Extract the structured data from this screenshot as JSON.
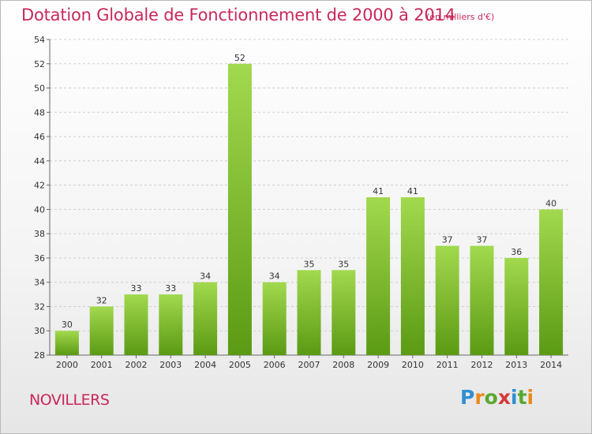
{
  "header": {
    "title": "Dotation Globale de Fonctionnement de 2000 à 2014",
    "unit": "(en milliers d'€)"
  },
  "place": "NOVILLERS",
  "logo": {
    "text": "Proxiti",
    "colors": [
      "#2f8fd0",
      "#e88a1a",
      "#58a830",
      "#d43a3a",
      "#2f8fd0",
      "#58a830",
      "#e88a1a"
    ]
  },
  "chart_data": {
    "type": "bar",
    "categories": [
      "2000",
      "2001",
      "2002",
      "2003",
      "2004",
      "2005",
      "2006",
      "2007",
      "2008",
      "2009",
      "2010",
      "2011",
      "2012",
      "2013",
      "2014"
    ],
    "values": [
      30,
      32,
      33,
      33,
      34,
      52,
      34,
      35,
      35,
      41,
      41,
      37,
      37,
      36,
      40
    ],
    "title": "Dotation Globale de Fonctionnement de 2000 à 2014",
    "subtitle": "(en milliers d'€)",
    "ylim": [
      28,
      54
    ],
    "yticks": [
      28,
      30,
      32,
      34,
      36,
      38,
      40,
      42,
      44,
      46,
      48,
      50,
      52,
      54
    ],
    "grid": true,
    "colors": {
      "bar_light": "#a2d94e",
      "bar_dark": "#5b9a14",
      "grid": "#cfcfcf",
      "text": "#333333"
    }
  }
}
